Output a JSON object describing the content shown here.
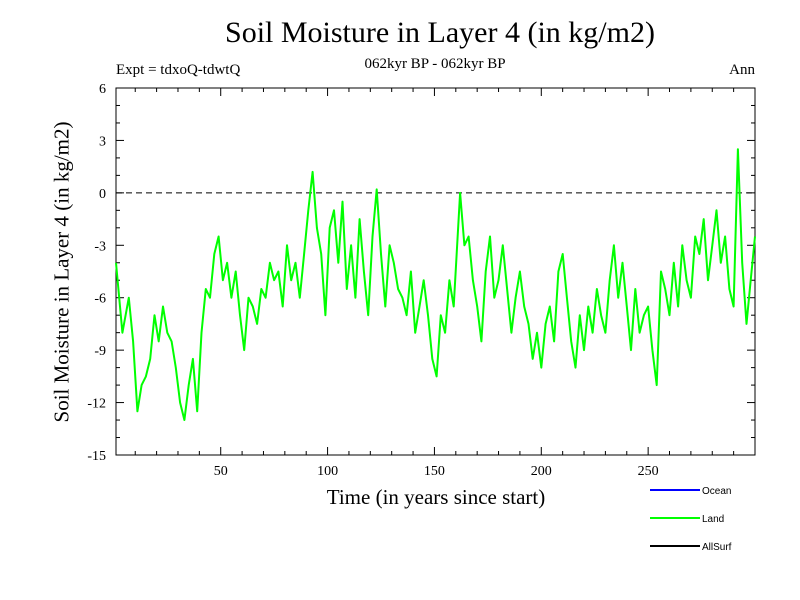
{
  "chart_data": {
    "type": "line",
    "title": "Soil Moisture in Layer 4 (in kg/m2)",
    "subtitle": "062kyr BP - 062kyr BP",
    "expt": "Expt = tdxoQ-tdwtQ",
    "season": "Ann",
    "xlabel": "Time (in years since start)",
    "ylabel": "Soil Moisture in Layer 4 (in kg/m2)",
    "xlim": [
      1,
      300
    ],
    "ylim": [
      -15,
      6
    ],
    "xticks": [
      50,
      100,
      150,
      200,
      250
    ],
    "yticks": [
      6,
      3,
      0,
      -3,
      -6,
      -9,
      -12,
      -15
    ],
    "zero_line": "dashed",
    "legend_position": "bottom-right",
    "series": [
      {
        "name": "Ocean",
        "color": "#0000ff",
        "values": []
      },
      {
        "name": "Land",
        "color": "#00ff00",
        "x": [
          1,
          4,
          7,
          9,
          11,
          13,
          15,
          17,
          19,
          21,
          23,
          25,
          27,
          29,
          31,
          33,
          35,
          37,
          39,
          41,
          43,
          45,
          47,
          49,
          51,
          53,
          55,
          57,
          59,
          61,
          63,
          65,
          67,
          69,
          71,
          73,
          75,
          77,
          79,
          81,
          83,
          85,
          87,
          89,
          91,
          93,
          95,
          97,
          99,
          101,
          103,
          105,
          107,
          109,
          111,
          113,
          115,
          117,
          119,
          121,
          123,
          125,
          127,
          129,
          131,
          133,
          135,
          137,
          139,
          141,
          143,
          145,
          147,
          149,
          151,
          153,
          155,
          157,
          159,
          162,
          164,
          166,
          168,
          170,
          172,
          174,
          176,
          178,
          180,
          182,
          184,
          186,
          188,
          190,
          192,
          194,
          196,
          198,
          200,
          202,
          204,
          206,
          208,
          210,
          212,
          214,
          216,
          218,
          220,
          222,
          224,
          226,
          228,
          230,
          232,
          234,
          236,
          238,
          240,
          242,
          244,
          246,
          248,
          250,
          252,
          254,
          256,
          258,
          260,
          262,
          264,
          266,
          268,
          270,
          272,
          274,
          276,
          278,
          280,
          282,
          284,
          286,
          288,
          290,
          292,
          294,
          296,
          298,
          300
        ],
        "values": [
          -4.0,
          -8.0,
          -6.0,
          -8.5,
          -12.5,
          -11.0,
          -10.5,
          -9.5,
          -7.0,
          -8.5,
          -6.5,
          -8.0,
          -8.5,
          -10.0,
          -12.0,
          -13.0,
          -11.0,
          -9.5,
          -12.5,
          -8.0,
          -5.5,
          -6.0,
          -3.5,
          -2.5,
          -5.0,
          -4.0,
          -6.0,
          -4.5,
          -7.0,
          -9.0,
          -6.0,
          -6.5,
          -7.5,
          -5.5,
          -6.0,
          -4.0,
          -5.0,
          -4.5,
          -6.5,
          -3.0,
          -5.0,
          -4.0,
          -6.0,
          -3.5,
          -1.0,
          1.2,
          -2.0,
          -3.5,
          -7.0,
          -2.0,
          -1.0,
          -4.0,
          -0.5,
          -5.5,
          -3.0,
          -6.0,
          -1.5,
          -4.5,
          -7.0,
          -2.5,
          0.2,
          -3.5,
          -6.5,
          -3.0,
          -4.0,
          -5.5,
          -6.0,
          -7.0,
          -4.5,
          -8.0,
          -6.5,
          -5.0,
          -7.0,
          -9.5,
          -10.5,
          -7.0,
          -8.0,
          -5.0,
          -6.5,
          0.0,
          -3.0,
          -2.5,
          -5.0,
          -6.5,
          -8.5,
          -4.5,
          -2.5,
          -6.0,
          -5.0,
          -3.0,
          -5.5,
          -8.0,
          -6.0,
          -4.5,
          -6.5,
          -7.5,
          -9.5,
          -8.0,
          -10.0,
          -7.5,
          -6.5,
          -8.5,
          -4.5,
          -3.5,
          -6.0,
          -8.5,
          -10.0,
          -7.0,
          -9.0,
          -6.5,
          -8.0,
          -5.5,
          -7.0,
          -8.0,
          -5.0,
          -3.0,
          -6.0,
          -4.0,
          -6.5,
          -9.0,
          -5.5,
          -8.0,
          -7.0,
          -6.5,
          -9.0,
          -11.0,
          -4.5,
          -5.5,
          -7.0,
          -4.0,
          -6.5,
          -3.0,
          -5.0,
          -6.0,
          -2.5,
          -3.5,
          -1.5,
          -5.0,
          -3.0,
          -1.0,
          -4.0,
          -2.5,
          -5.5,
          -6.5,
          2.5,
          -4.0,
          -7.5,
          -5.0,
          -2.5
        ]
      },
      {
        "name": "AllSurf",
        "color": "#000000",
        "values": []
      }
    ]
  }
}
